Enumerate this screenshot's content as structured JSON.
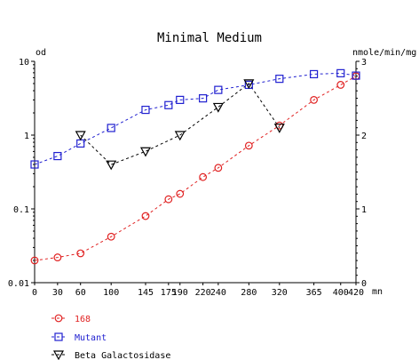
{
  "chart_data": {
    "type": "line",
    "title": "Minimal Medium",
    "xlabel": "mn",
    "ylabel_left": "od",
    "ylabel_right": "nmole/min/mg",
    "xlim": [
      0,
      420
    ],
    "ylim_left": [
      0.01,
      10
    ],
    "ylim_right": [
      0,
      3
    ],
    "left_scale": "log",
    "right_scale": "linear",
    "x_ticks": [
      0,
      30,
      60,
      100,
      145,
      175,
      190,
      220,
      240,
      280,
      320,
      365,
      400,
      420
    ],
    "x_tick_labels": [
      "0",
      "30",
      "60",
      "100",
      "145",
      "175",
      "190",
      "220",
      "240",
      "280",
      "320",
      "365",
      "400",
      "420"
    ],
    "y_left_ticks": [
      0.01,
      0.1,
      1,
      10
    ],
    "y_left_tick_labels": [
      "0.01",
      "0.1",
      "1",
      "10"
    ],
    "y_right_ticks": [
      0,
      1,
      2,
      3
    ],
    "y_right_tick_labels": [
      "0",
      "1",
      "2",
      "3"
    ],
    "grid": false,
    "legend_position": "bottom-left",
    "series": [
      {
        "name": "168",
        "axis": "left",
        "marker": "circle",
        "color": "#e02020",
        "x": [
          0,
          30,
          60,
          100,
          145,
          175,
          190,
          220,
          240,
          280,
          320,
          365,
          400,
          420
        ],
        "values": [
          0.02,
          0.022,
          0.025,
          0.042,
          0.08,
          0.135,
          0.16,
          0.27,
          0.36,
          0.72,
          1.35,
          3.0,
          4.8,
          6.3
        ]
      },
      {
        "name": "Mutant",
        "axis": "left",
        "marker": "square",
        "color": "#2020d0",
        "x": [
          0,
          30,
          60,
          100,
          145,
          175,
          190,
          220,
          240,
          280,
          320,
          365,
          400,
          420
        ],
        "values": [
          0.4,
          0.52,
          0.77,
          1.25,
          2.2,
          2.55,
          3.0,
          3.15,
          4.1,
          4.8,
          5.8,
          6.7,
          6.9,
          6.4
        ]
      },
      {
        "name": "Beta Galactosidase",
        "axis": "right",
        "marker": "triangle-down",
        "color": "#000000",
        "x": [
          60,
          100,
          145,
          190,
          240,
          280,
          320
        ],
        "values": [
          2.0,
          1.6,
          1.78,
          2.0,
          2.38,
          2.7,
          2.1
        ]
      }
    ]
  }
}
